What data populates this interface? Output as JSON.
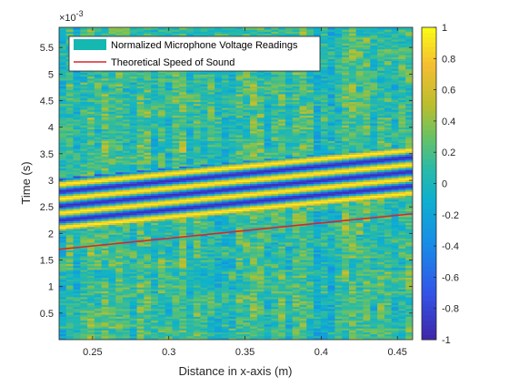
{
  "chart_data": {
    "type": "heatmap",
    "title": "",
    "xlabel": "Distance in x-axis (m)",
    "ylabel": "Time (s)",
    "y_exponent_label": "×10",
    "y_exponent_power": "-3",
    "xlim": [
      0.228,
      0.46
    ],
    "ylim": [
      0.0,
      0.00588
    ],
    "x_ticks": [
      0.25,
      0.3,
      0.35,
      0.4,
      0.45
    ],
    "x_tick_labels": [
      "0.25",
      "0.3",
      "0.35",
      "0.4",
      "0.45"
    ],
    "y_ticks": [
      0.0005,
      0.001,
      0.0015,
      0.002,
      0.0025,
      0.003,
      0.0035,
      0.004,
      0.0045,
      0.005,
      0.0055
    ],
    "y_tick_labels": [
      "0.5",
      "1",
      "1.5",
      "2",
      "2.5",
      "3",
      "3.5",
      "4",
      "4.5",
      "5",
      "5.5"
    ],
    "colorbar": {
      "colormap": "parula",
      "limits": [
        -1,
        1
      ],
      "ticks": [
        -1,
        -0.8,
        -0.6,
        -0.4,
        -0.2,
        0,
        0.2,
        0.4,
        0.6,
        0.8,
        1
      ],
      "tick_labels": [
        "-1",
        "-0.8",
        "-0.6",
        "-0.4",
        "-0.2",
        "0",
        "0.2",
        "0.4",
        "0.6",
        "0.8",
        "1"
      ]
    },
    "series": [
      {
        "name": "Normalized Microphone Voltage Readings",
        "kind": "heatmap",
        "color": "#14B8B0",
        "description_note": "normalized voltage (colour) vs distance and time",
        "wavefront_onset": [
          [
            0.228,
            0.00205
          ],
          [
            0.46,
            0.0027
          ]
        ],
        "wavefront_end": [
          [
            0.228,
            0.00305
          ],
          [
            0.46,
            0.00365
          ]
        ]
      },
      {
        "name": "Theoretical Speed of Sound",
        "kind": "line",
        "color": "#D7262B",
        "points": [
          [
            0.228,
            0.0017
          ],
          [
            0.46,
            0.00237
          ]
        ]
      }
    ],
    "legend_position": "top-left",
    "grid": false
  }
}
